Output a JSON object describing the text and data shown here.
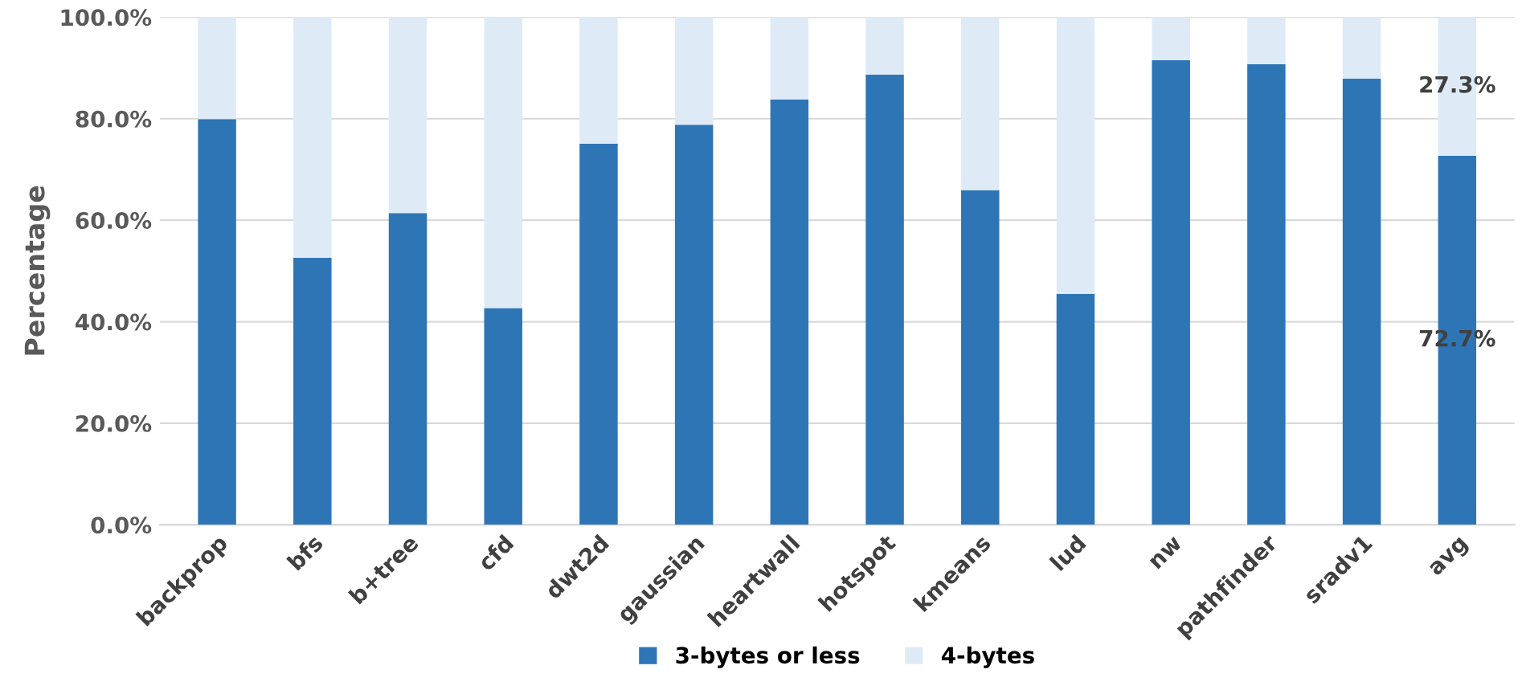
{
  "chart_data": {
    "type": "bar",
    "stacked": true,
    "ylabel": "Percentage",
    "categories": [
      "backprop",
      "bfs",
      "b+tree",
      "cfd",
      "dwt2d",
      "gaussian",
      "heartwall",
      "hotspot",
      "kmeans",
      "lud",
      "nw",
      "pathfinder",
      "sradv1",
      "avg"
    ],
    "series": [
      {
        "name": "3-bytes or less",
        "color": "#2e75b6",
        "values": [
          79.9,
          52.6,
          61.4,
          42.7,
          75.1,
          78.8,
          83.8,
          88.7,
          65.9,
          45.5,
          91.5,
          90.7,
          87.9,
          72.7
        ],
        "value_labels": [
          null,
          null,
          null,
          null,
          null,
          null,
          null,
          null,
          null,
          null,
          null,
          null,
          null,
          "72.7%"
        ]
      },
      {
        "name": "4-bytes",
        "color": "#deebf7",
        "values": [
          20.1,
          47.4,
          38.6,
          57.3,
          24.9,
          21.2,
          16.2,
          11.3,
          34.1,
          54.5,
          8.5,
          9.3,
          12.1,
          27.3
        ],
        "value_labels": [
          null,
          null,
          null,
          null,
          null,
          null,
          null,
          null,
          null,
          null,
          null,
          null,
          null,
          "27.3%"
        ]
      }
    ],
    "ylim": [
      0,
      100
    ],
    "yticks": [
      {
        "value": 0,
        "label": "0.0%"
      },
      {
        "value": 20,
        "label": "20.0%"
      },
      {
        "value": 40,
        "label": "40.0%"
      },
      {
        "value": 60,
        "label": "60.0%"
      },
      {
        "value": 80,
        "label": "80.0%"
      },
      {
        "value": 100,
        "label": "100.0%"
      }
    ],
    "grid": "y",
    "legend": "bottom"
  }
}
